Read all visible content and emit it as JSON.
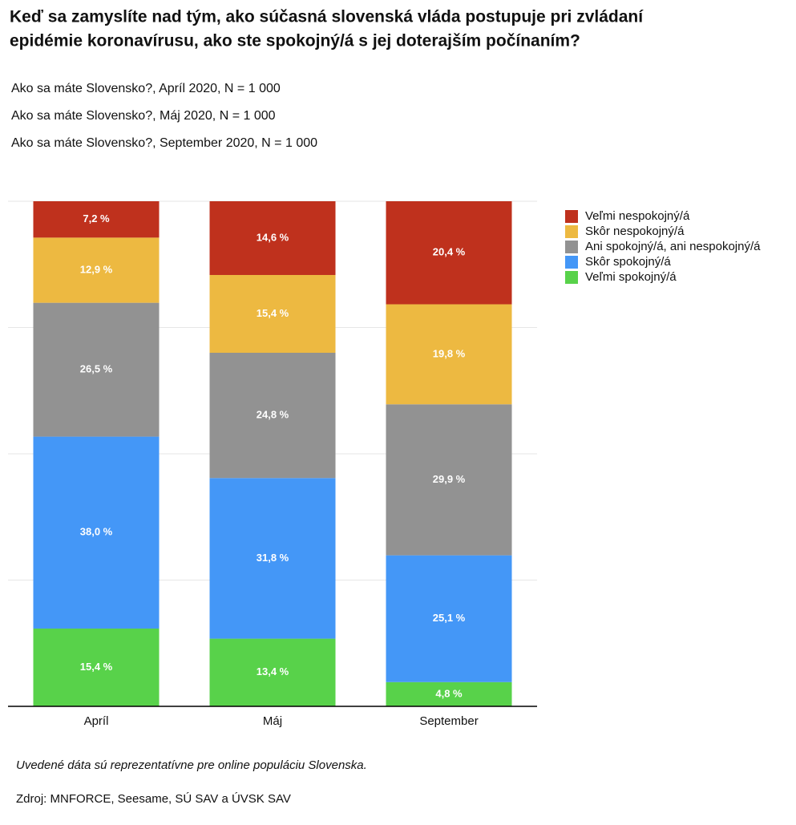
{
  "chart_data": {
    "type": "stacked_bar",
    "title": [
      "Keď sa zamyslíte nad tým, ako súčasná slovenská vláda postupuje pri zvládaní",
      "epidémie koronavírusu, ako ste spokojný/á s jej doterajším počínaním?"
    ],
    "subtitles": [
      "Ako sa máte Slovensko?, Apríl 2020, N = 1 000",
      "Ako sa máte Slovensko?, Máj 2020, N = 1 000",
      "Ako sa máte Slovensko?, September 2020, N = 1 000"
    ],
    "categories": [
      "Apríl",
      "Máj",
      "September"
    ],
    "series": [
      {
        "name": "Veľmi nespokojný/á",
        "color": "#bf311d",
        "values": [
          7.2,
          14.6,
          20.4
        ],
        "value_labels": [
          "7,2 %",
          "14,6 %",
          "20,4 %"
        ]
      },
      {
        "name": "Skôr nespokojný/á",
        "color": "#edb941",
        "values": [
          12.9,
          15.4,
          19.8
        ],
        "value_labels": [
          "12,9 %",
          "15,4 %",
          "19,8 %"
        ]
      },
      {
        "name": "Ani spokojný/á, ani nespokojný/á",
        "color": "#929292",
        "values": [
          26.5,
          24.8,
          29.9
        ],
        "value_labels": [
          "26,5 %",
          "24,8 %",
          "29,9 %"
        ]
      },
      {
        "name": "Skôr spokojný/á",
        "color": "#4497f7",
        "values": [
          38.0,
          31.8,
          25.1
        ],
        "value_labels": [
          "38,0 %",
          "31,8 %",
          "25,1 %"
        ]
      },
      {
        "name": "Veľmi spokojný/á",
        "color": "#58d24a",
        "values": [
          15.4,
          13.4,
          4.8
        ],
        "value_labels": [
          "15,4 %",
          "13,4 %",
          "4,8 %"
        ]
      }
    ],
    "ylim": [
      0,
      100
    ],
    "yticks": [
      0,
      25,
      50,
      75,
      100
    ],
    "grid": true,
    "legend": "right",
    "notes": [
      "Uvedené dáta sú reprezentatívne pre online populáciu Slovenska.",
      "Zdroj: MNFORCE, Seesame, SÚ SAV a ÚVSK SAV"
    ]
  }
}
